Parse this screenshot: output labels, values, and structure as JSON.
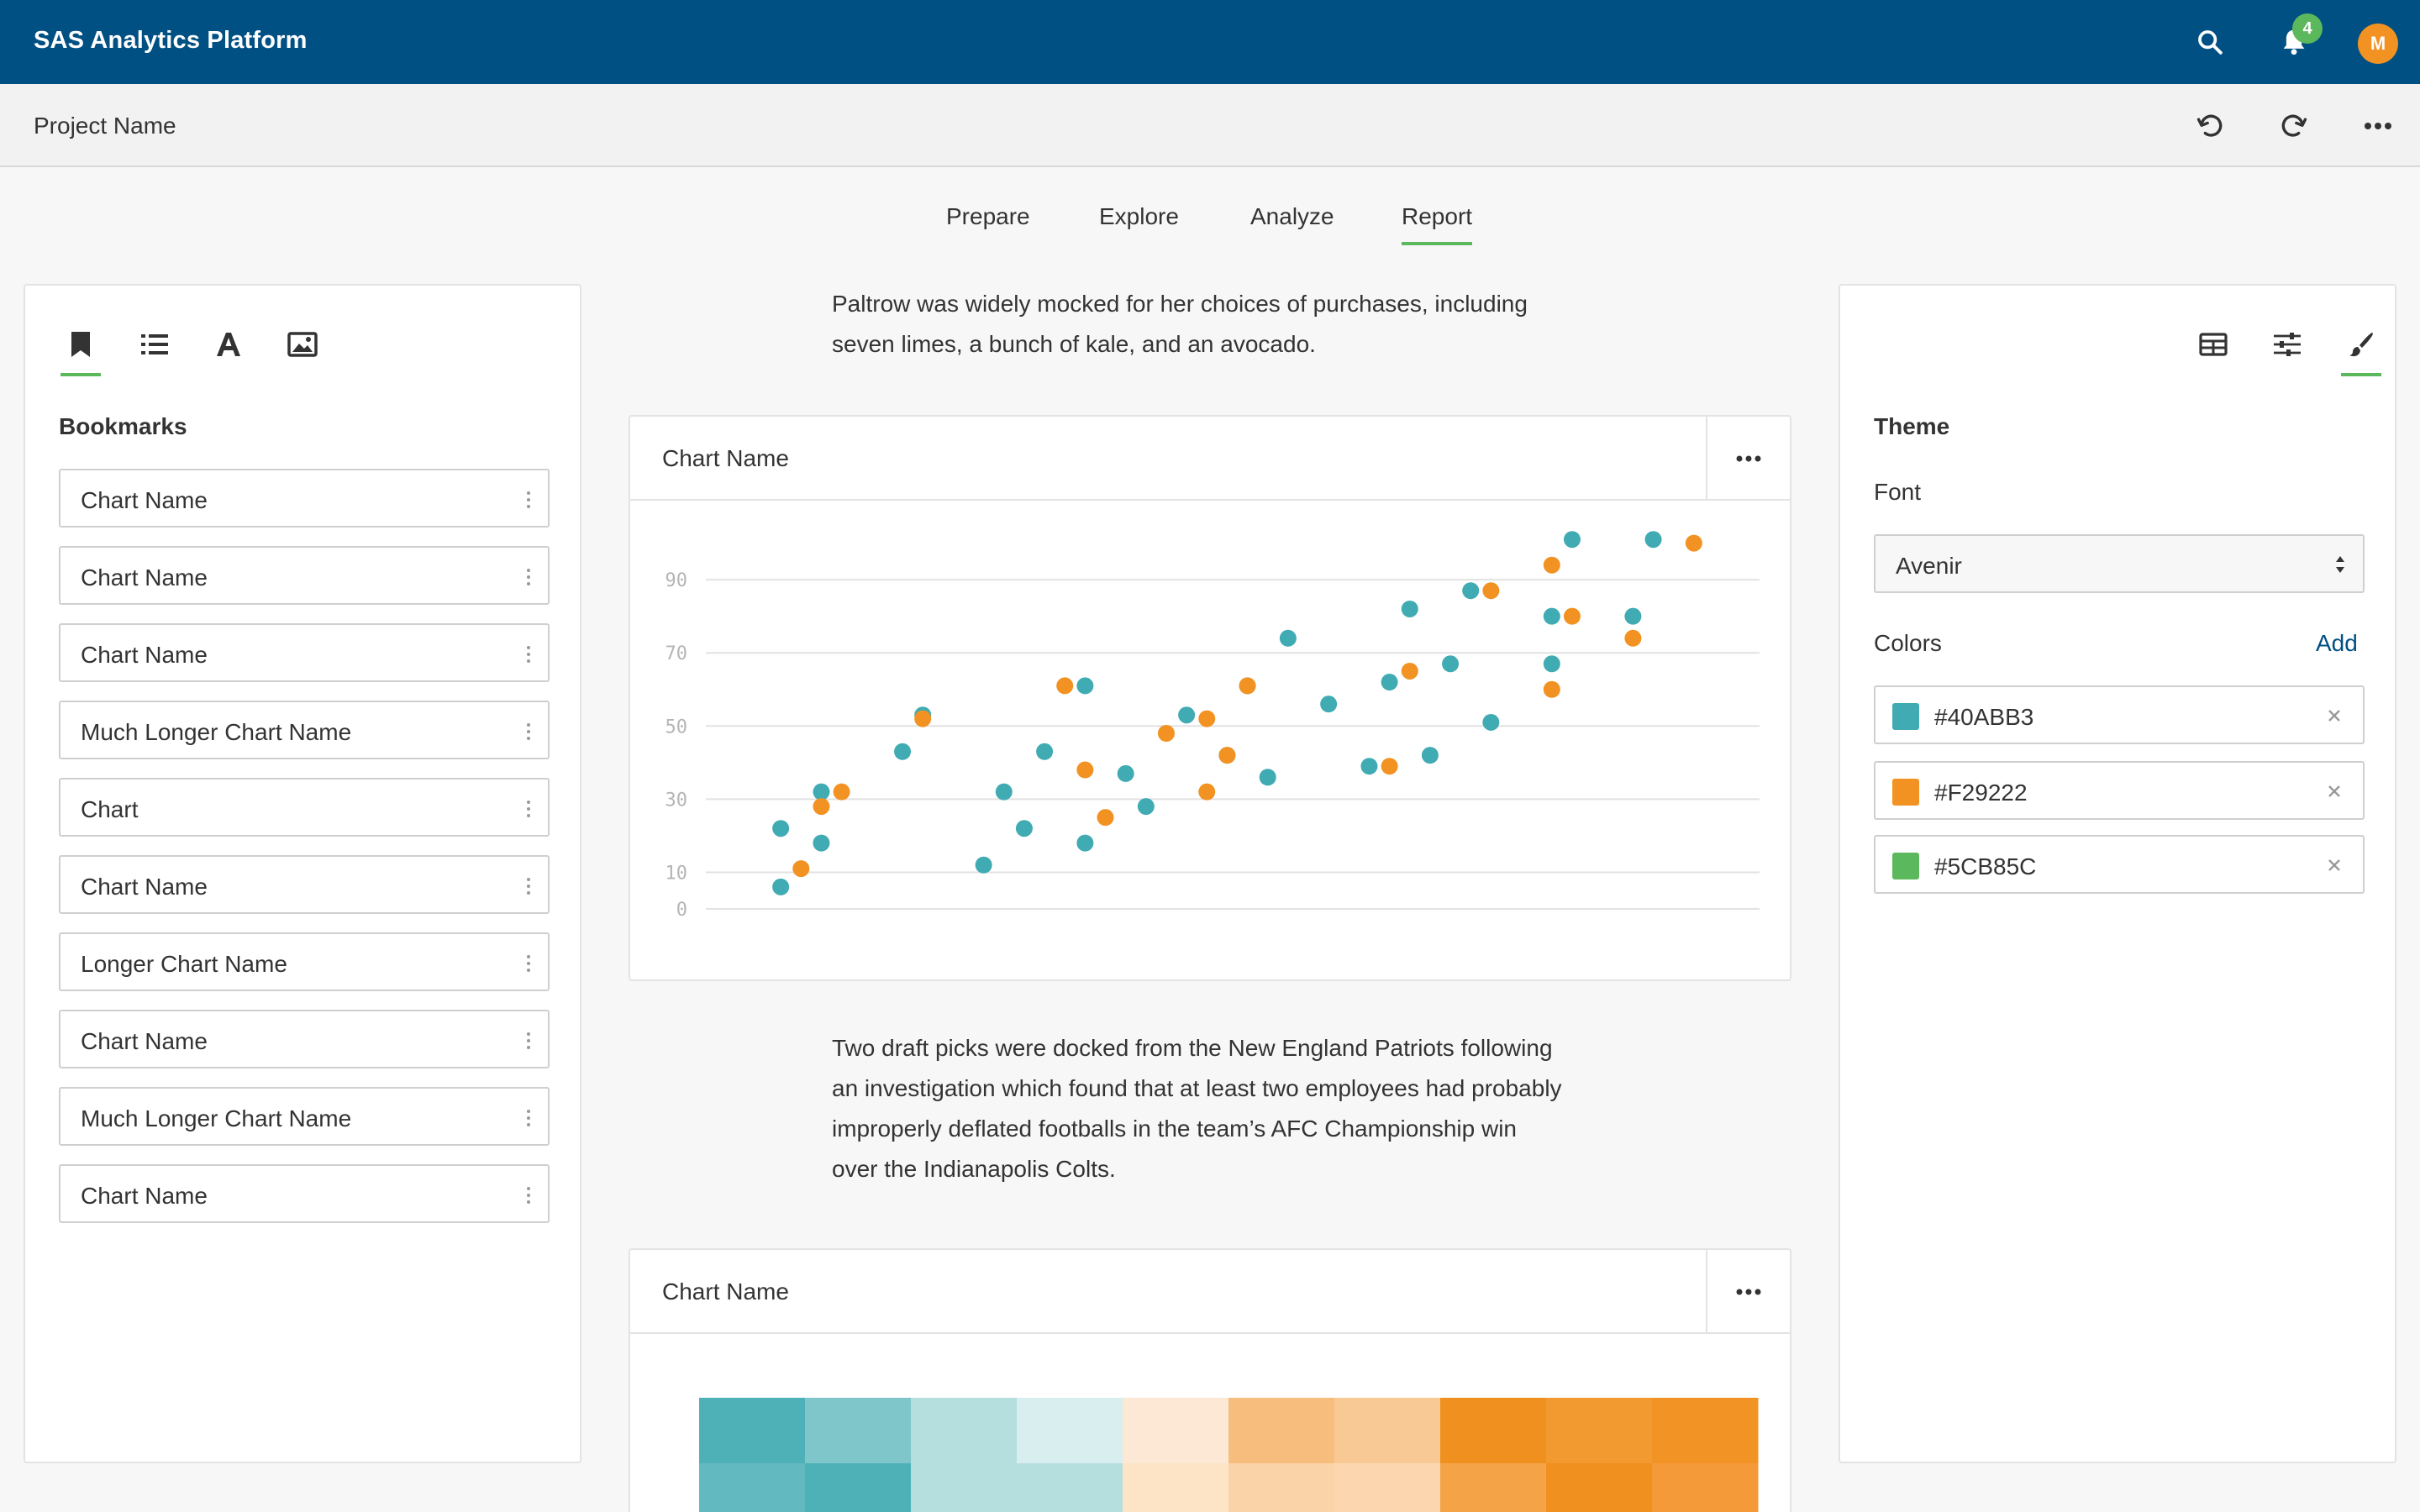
{
  "app": {
    "title": "SAS Analytics Platform",
    "notification_count": "4",
    "avatar_initial": "M",
    "brand_color": "#005083",
    "accent_color": "#5cb85c",
    "icons": [
      "search-icon",
      "bell-icon",
      "undo-icon",
      "redo-icon",
      "more-icon"
    ]
  },
  "project": {
    "name": "Project Name"
  },
  "tabs": [
    {
      "label": "Prepare",
      "active": false
    },
    {
      "label": "Explore",
      "active": false
    },
    {
      "label": "Analyze",
      "active": false
    },
    {
      "label": "Report",
      "active": true
    }
  ],
  "left_panel": {
    "tab_icons": [
      "bookmark-icon",
      "list-icon",
      "text-icon",
      "image-icon"
    ],
    "active_tab": "bookmark-icon",
    "section_title": "Bookmarks",
    "bookmarks": [
      {
        "label": "Chart Name"
      },
      {
        "label": "Chart Name"
      },
      {
        "label": "Chart Name"
      },
      {
        "label": "Much Longer Chart Name"
      },
      {
        "label": "Chart"
      },
      {
        "label": "Chart Name"
      },
      {
        "label": "Longer Chart Name"
      },
      {
        "label": "Chart Name"
      },
      {
        "label": "Much Longer Chart Name"
      },
      {
        "label": "Chart Name"
      }
    ]
  },
  "content": {
    "paragraph1": "Paltrow was widely mocked for her choices of purchases, including seven limes, a bunch of kale, and an avocado.",
    "paragraph1_lines": [
      "Paltrow was widely mocked for her choices of purchases, including",
      "seven limes, a bunch of kale, and an avocado."
    ],
    "paragraph2_lines": [
      "Two draft picks were docked from the New England Patriots following",
      "an investigation which found that at least two employees had probably",
      "improperly deflated footballs in the team’s AFC Championship win",
      "over the Indianapolis Colts."
    ],
    "chart1_title": "Chart Name",
    "chart2_title": "Chart Name"
  },
  "right_panel": {
    "tab_icons": [
      "table-icon",
      "sliders-icon",
      "brush-icon"
    ],
    "active_tab": "brush-icon",
    "section_title": "Theme",
    "font_label": "Font",
    "font_value": "Avenir",
    "colors_label": "Colors",
    "add_label": "Add",
    "colors": [
      {
        "hex": "#40ABB3",
        "swatch": "#40ABB3"
      },
      {
        "hex": "#F29222",
        "swatch": "#F29222"
      },
      {
        "hex": "#5CB85C",
        "swatch": "#5CB85C"
      }
    ]
  },
  "chart_data": [
    {
      "type": "scatter",
      "title": "Chart Name",
      "ylim": [
        0,
        100
      ],
      "yticks": [
        0,
        10,
        30,
        50,
        70,
        90
      ],
      "grid": true,
      "series": [
        {
          "color": "#40ABB3",
          "points": [
            [
              1,
              6
            ],
            [
              1,
              22
            ],
            [
              3,
              32
            ],
            [
              3,
              18
            ],
            [
              7,
              43
            ],
            [
              8,
              53
            ],
            [
              11,
              12
            ],
            [
              12,
              32
            ],
            [
              13,
              22
            ],
            [
              14,
              43
            ],
            [
              16,
              18
            ],
            [
              16,
              61
            ],
            [
              18,
              37
            ],
            [
              19,
              28
            ],
            [
              21,
              53
            ],
            [
              23,
              42
            ],
            [
              24,
              61
            ],
            [
              25,
              36
            ],
            [
              26,
              74
            ],
            [
              28,
              56
            ],
            [
              30,
              39
            ],
            [
              31,
              62
            ],
            [
              32,
              82
            ],
            [
              33,
              42
            ],
            [
              34,
              67
            ],
            [
              35,
              87
            ],
            [
              36,
              51
            ],
            [
              39,
              80
            ],
            [
              39,
              67
            ],
            [
              40,
              101
            ],
            [
              43,
              80
            ],
            [
              44,
              101
            ]
          ]
        },
        {
          "color": "#F29222",
          "points": [
            [
              2,
              11
            ],
            [
              3,
              28
            ],
            [
              4,
              32
            ],
            [
              8,
              52
            ],
            [
              15,
              61
            ],
            [
              16,
              38
            ],
            [
              17,
              25
            ],
            [
              20,
              48
            ],
            [
              22,
              32
            ],
            [
              22,
              52
            ],
            [
              23,
              42
            ],
            [
              24,
              61
            ],
            [
              31,
              39
            ],
            [
              32,
              65
            ],
            [
              36,
              87
            ],
            [
              39,
              94
            ],
            [
              39,
              60
            ],
            [
              40,
              80
            ],
            [
              43,
              74
            ],
            [
              46,
              100
            ]
          ]
        }
      ]
    },
    {
      "type": "heatmap",
      "title": "Chart Name",
      "rows": [
        [
          "#4fb1b8",
          "#7ec6ca",
          "#b5dedf",
          "#d9eeee",
          "#fce8d4",
          "#f6bd7d",
          "#f9c995",
          "#f0901f",
          "#f29a30",
          "#f19325"
        ],
        [
          "#62b9bf",
          "#4fb1b8",
          "#b5dedf",
          "#b5dedf",
          "#fde4c6",
          "#fbd3a8",
          "#fcd6ae",
          "#f4a447",
          "#f0901f",
          "#f49a38"
        ]
      ]
    }
  ]
}
